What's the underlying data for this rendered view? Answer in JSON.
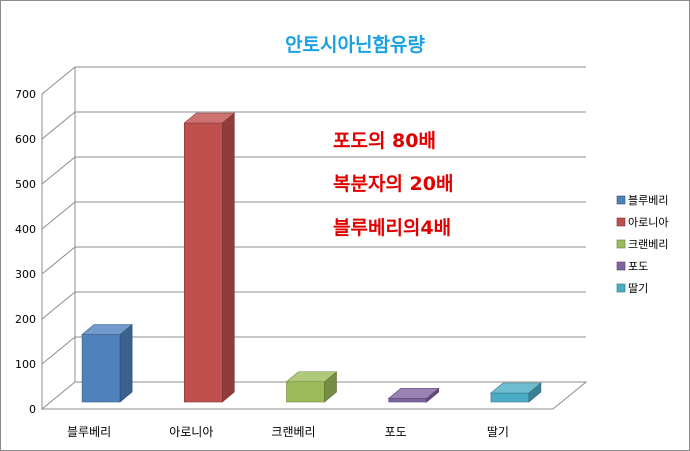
{
  "chart_data": {
    "type": "bar",
    "title": "안토시아닌함유량",
    "categories": [
      "블루베리",
      "아로니아",
      "크랜베리",
      "포도",
      "딸기"
    ],
    "values": [
      150,
      620,
      45,
      8,
      20
    ],
    "ylim": [
      0,
      700
    ],
    "yticks": [
      0,
      100,
      200,
      300,
      400,
      500,
      600,
      700
    ],
    "grid": true,
    "legend_position": "right",
    "colors": [
      "#4f81bd",
      "#c0504d",
      "#9bbb59",
      "#8064a2",
      "#4bacc6"
    ],
    "annotations": [
      "포도의 80배",
      "복분자의 20배",
      "블루베리의4배"
    ]
  }
}
